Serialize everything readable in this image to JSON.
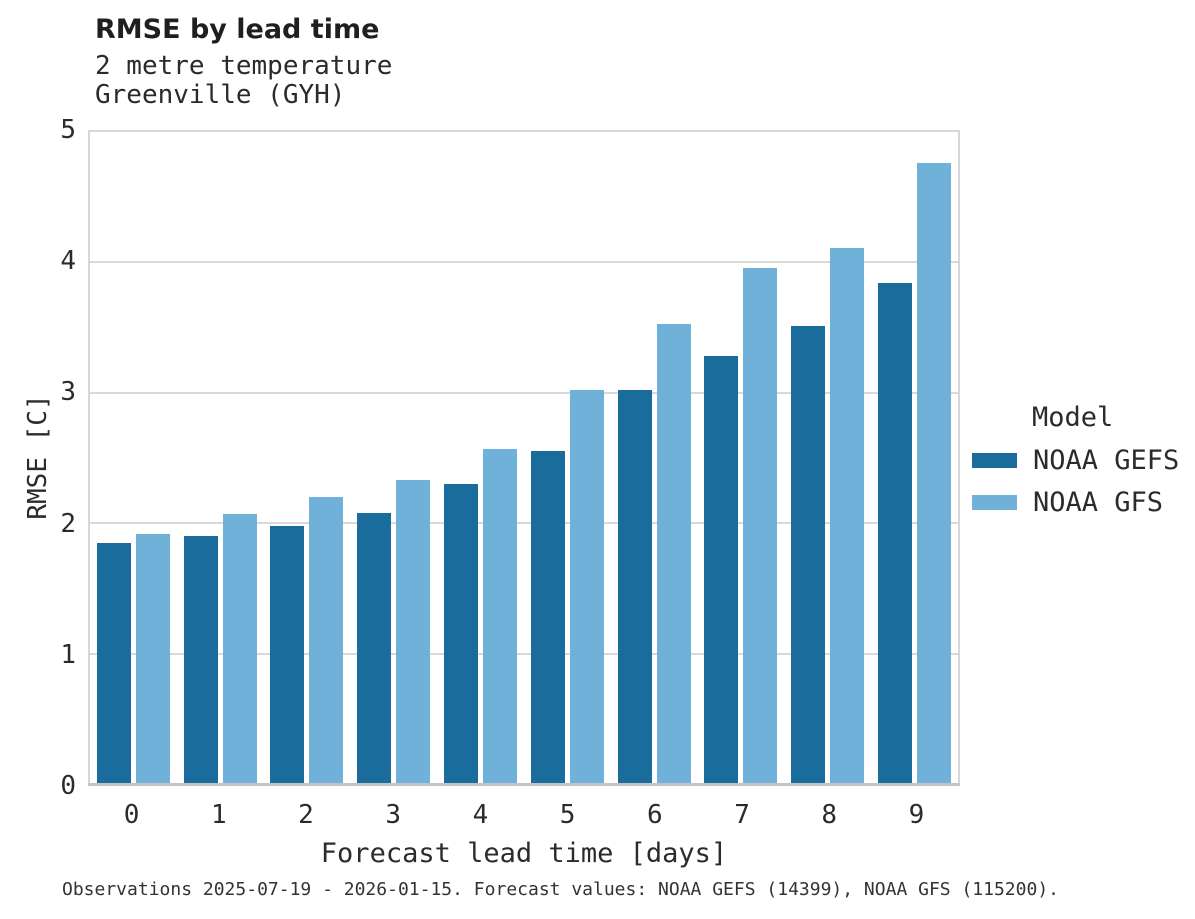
{
  "chart_data": {
    "type": "bar",
    "title": "RMSE by lead time",
    "subtitle_lines": [
      "2 metre temperature",
      "Greenville (GYH)"
    ],
    "categories": [
      "0",
      "1",
      "2",
      "3",
      "4",
      "5",
      "6",
      "7",
      "8",
      "9"
    ],
    "series": [
      {
        "name": "NOAA GEFS",
        "color": "#1a6c9c",
        "values": [
          1.85,
          1.9,
          1.98,
          2.08,
          2.3,
          2.55,
          3.02,
          3.28,
          3.51,
          3.84
        ]
      },
      {
        "name": "NOAA GFS",
        "color": "#6fb1d8",
        "values": [
          1.92,
          2.07,
          2.2,
          2.33,
          2.57,
          3.02,
          3.53,
          3.96,
          4.11,
          4.76
        ]
      }
    ],
    "xlabel": "Forecast lead time [days]",
    "ylabel": "RMSE [C]",
    "ylim": [
      0,
      5
    ],
    "yticks": [
      "0",
      "1",
      "2",
      "3",
      "4",
      "5"
    ],
    "grid": true,
    "legend": {
      "title": "Model",
      "position": "right"
    },
    "footnote": "Observations 2025-07-19 - 2026-01-15. Forecast values: NOAA GEFS (14399), NOAA GFS (115200)."
  },
  "colors": {
    "bar_dark": "#1a6c9c",
    "bar_light": "#6fb1d8",
    "gridline": "#d9d9d9",
    "axis_line": "#c4c4c4",
    "plot_border": "#d6d6d6",
    "text": "#2b2b2b"
  }
}
